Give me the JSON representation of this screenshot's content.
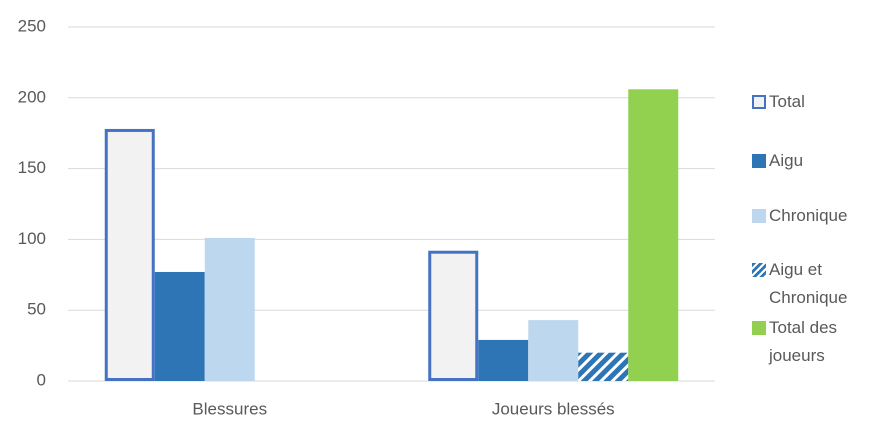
{
  "chart_data": {
    "type": "bar",
    "categories": [
      "Blessures",
      "Joueurs blessés"
    ],
    "series": [
      {
        "name": "Total",
        "color": "#4472c4",
        "fill": "#f2f2f2",
        "values": [
          178,
          92
        ]
      },
      {
        "name": "Aigu",
        "color": "#2e75b6",
        "values": [
          77,
          29
        ]
      },
      {
        "name": "Chronique",
        "color": "#bdd7ee",
        "values": [
          101,
          43
        ]
      },
      {
        "name": "Aigu et Chronique",
        "color": "#2e75b6",
        "hatch": true,
        "values": [
          null,
          20
        ]
      },
      {
        "name": "Total des joueurs",
        "color": "#92d050",
        "values": [
          null,
          206
        ]
      }
    ],
    "ylim": [
      0,
      250
    ],
    "yticks": [
      0,
      50,
      100,
      150,
      200,
      250
    ],
    "grid": true,
    "legend": "right"
  }
}
